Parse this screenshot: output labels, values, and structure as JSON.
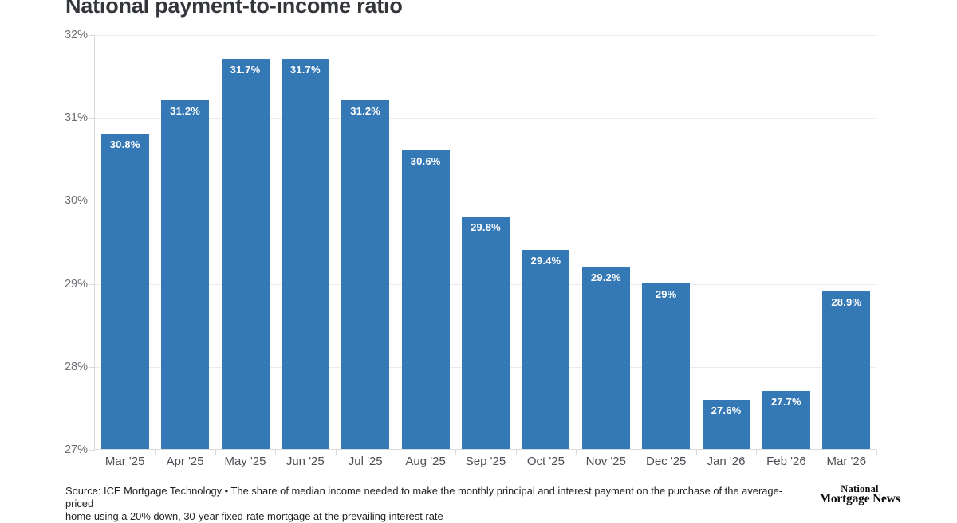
{
  "chart_data": {
    "type": "bar",
    "title": "National payment-to-income ratio",
    "categories": [
      "Mar '25",
      "Apr '25",
      "May '25",
      "Jun '25",
      "Jul '25",
      "Aug '25",
      "Sep '25",
      "Oct '25",
      "Nov '25",
      "Dec '25",
      "Jan '26",
      "Feb '26",
      "Mar '26"
    ],
    "values": [
      30.8,
      31.2,
      31.7,
      31.7,
      31.2,
      30.6,
      29.8,
      29.4,
      29.2,
      29.0,
      27.6,
      27.7,
      28.9
    ],
    "value_labels": [
      "30.8%",
      "31.2%",
      "31.7%",
      "31.7%",
      "31.2%",
      "30.6%",
      "29.8%",
      "29.4%",
      "29.2%",
      "29%",
      "27.6%",
      "27.7%",
      "28.9%"
    ],
    "xlabel": "",
    "ylabel": "",
    "ylim": [
      27,
      32
    ],
    "ytick_values": [
      27,
      28,
      29,
      30,
      31,
      32
    ],
    "ytick_labels": [
      "27%",
      "28%",
      "29%",
      "30%",
      "31%",
      "32%"
    ],
    "grid": true,
    "legend_position": "none",
    "bar_color": "#3478b6",
    "bar_label_color": "#ffffff"
  },
  "footer": {
    "source_lines": [
      "Source: ICE Mortgage Technology • The share of median income needed to make the monthly principal and interest payment on the purchase of the average-priced",
      "home using a 20% down, 30-year fixed-rate mortgage at the prevailing interest rate"
    ],
    "logo_line1": "National",
    "logo_line2": "Mortgage News"
  }
}
